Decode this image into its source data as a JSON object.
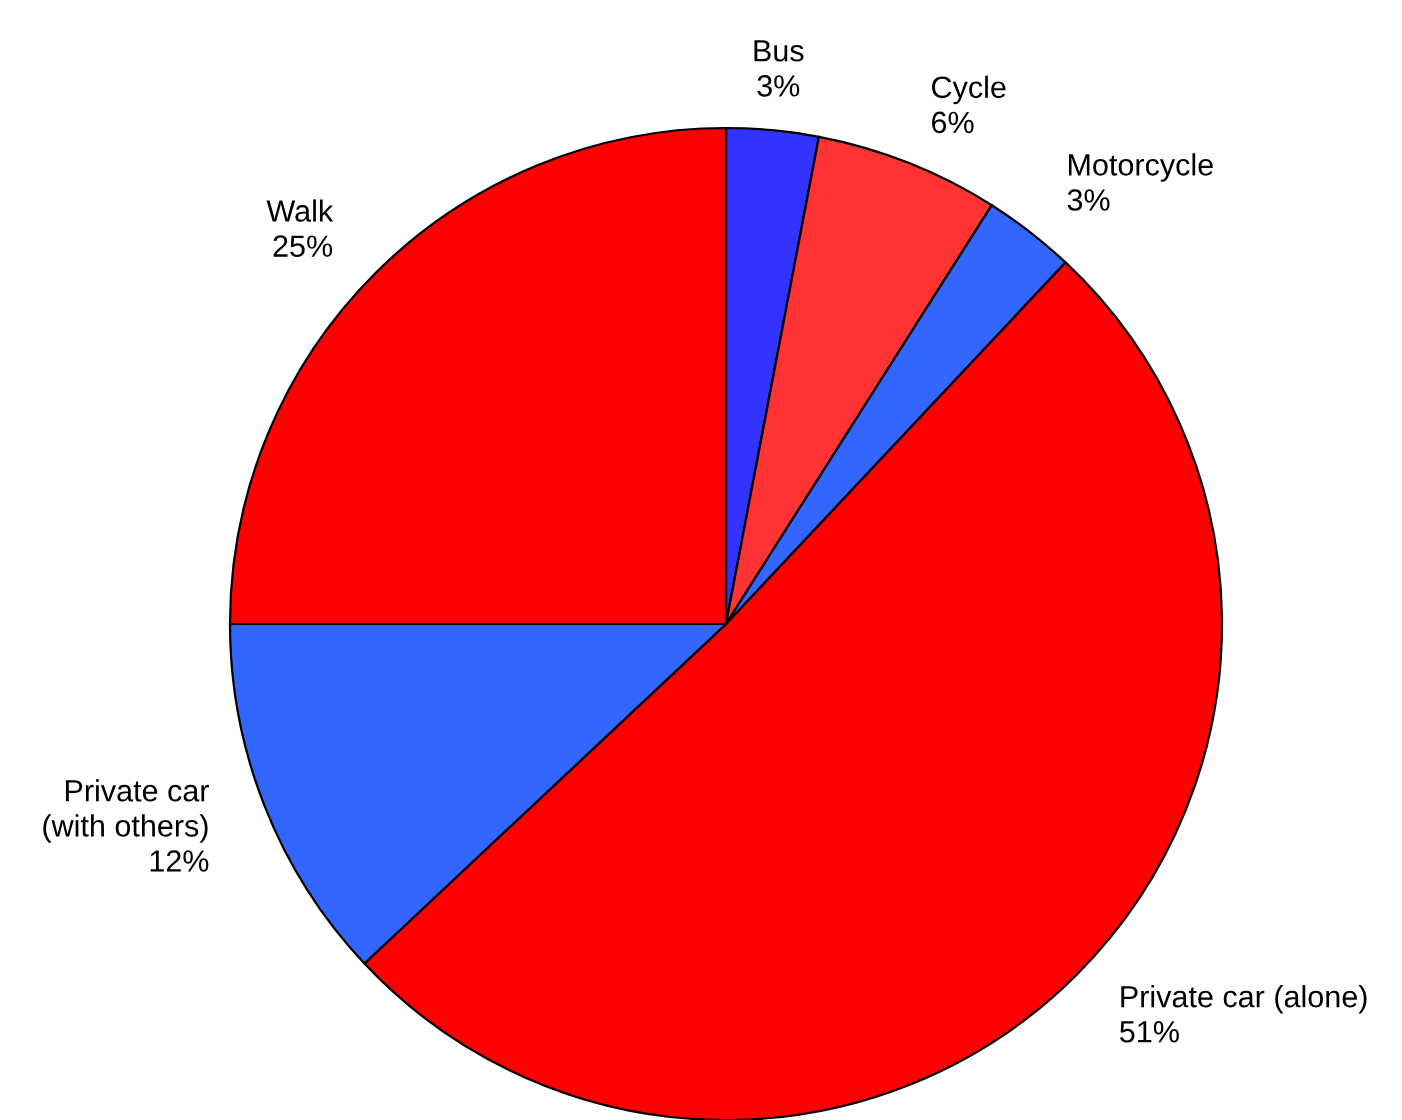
{
  "chart_data": {
    "type": "pie",
    "categories": [
      "Bus",
      "Cycle",
      "Motorcycle",
      "Private car (alone)",
      "Private car\n(with others)",
      "Walk"
    ],
    "values": [
      3,
      6,
      3,
      51,
      12,
      25
    ],
    "value_labels": [
      "3%",
      "6%",
      "3%",
      "51%",
      "12%",
      "25%"
    ],
    "colors": [
      "#3333ff",
      "#ff3333",
      "#3366ff",
      "#ff0000",
      "#3366ff",
      "#ff0000"
    ]
  }
}
